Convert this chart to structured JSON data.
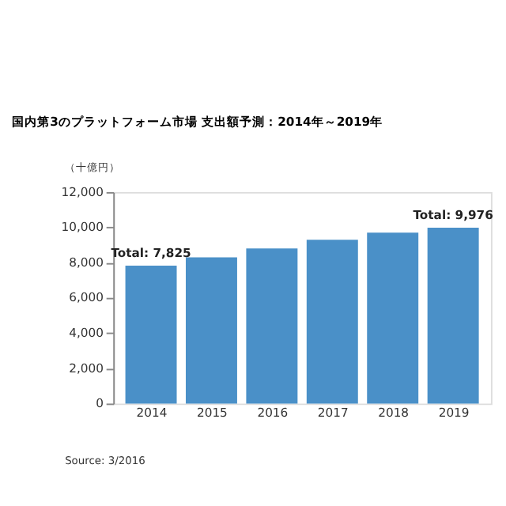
{
  "chart_data": {
    "type": "bar",
    "title": "国内第3のプラットフォーム市場 支出額予測：2014年～2019年",
    "ylabel": "（十億円）",
    "categories": [
      "2014",
      "2015",
      "2016",
      "2017",
      "2018",
      "2019"
    ],
    "values": [
      7825,
      8300,
      8800,
      9300,
      9700,
      9976
    ],
    "value_labels": [
      "Total: 7,825",
      null,
      null,
      null,
      null,
      "Total: 9,976"
    ],
    "color": "#4a90c8",
    "ylim": [
      0,
      12000
    ],
    "yticks": [
      0,
      {
        "value": 2000,
        "label": "2,000"
      },
      {
        "value": 4000,
        "label": "4,000"
      },
      {
        "value": 6000,
        "label": "6,000"
      },
      {
        "value": 8000,
        "label": "8,000"
      },
      {
        "value": 10000,
        "label": "10,000"
      },
      {
        "value": 12000,
        "label": "12,000"
      }
    ],
    "grid": false,
    "annotations": [
      "Source: 3/2016"
    ]
  }
}
